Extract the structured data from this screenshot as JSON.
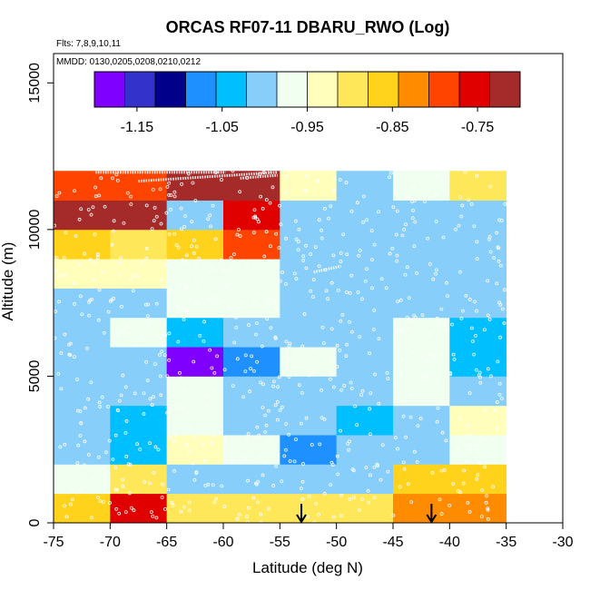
{
  "chart_data": {
    "type": "heatmap",
    "title": "ORCAS RF07-11 DBARU_RWO (Log)",
    "xlabel": "Latitude (deg N)",
    "ylabel": "Altitude (m)",
    "annotations": [
      "Flts: 7,8,9,10,11",
      "MMDD: 0130,0205,0208,0210,0212"
    ],
    "xlim": [
      -75,
      -30
    ],
    "ylim": [
      0,
      16000
    ],
    "x_ticks": [
      -75,
      -70,
      -65,
      -60,
      -55,
      -50,
      -45,
      -40,
      -35,
      -30
    ],
    "x_tick_labels": [
      "-75",
      "-70",
      "-65",
      "-60",
      "-55",
      "-50",
      "-45",
      "-40",
      "-35",
      "-30"
    ],
    "y_ticks": [
      0,
      5000,
      10000,
      15000
    ],
    "y_tick_labels": [
      "0",
      "5000",
      "10000",
      "15000"
    ],
    "colorbar": {
      "range": [
        -1.2,
        -0.7
      ],
      "tick_values": [
        -1.15,
        -1.05,
        -0.95,
        -0.85,
        -0.75
      ],
      "tick_labels": [
        "-1.15",
        "-1.05",
        "-0.95",
        "-0.85",
        "-0.75"
      ],
      "colors": [
        "#7f00ff",
        "#3333cc",
        "#00008b",
        "#1e90ff",
        "#00bfff",
        "#87cefa",
        "#f0fff0",
        "#ffffbb",
        "#ffe75a",
        "#ffd21c",
        "#ff8c00",
        "#ff4400",
        "#e00000",
        "#a52a2a"
      ]
    },
    "x_bins": [
      -75,
      -70,
      -65,
      -60,
      -55,
      -50,
      -45,
      -40,
      -35
    ],
    "y_bins": [
      0,
      1000,
      2000,
      3000,
      4000,
      5000,
      6000,
      7000,
      8000,
      9000,
      10000,
      11000,
      12000
    ],
    "cell_values": [
      [
        -0.86,
        -0.76,
        -0.9,
        -0.9,
        -0.9,
        -0.9,
        -0.84,
        -0.84
      ],
      [
        -0.97,
        -0.9,
        -0.99,
        -0.99,
        -0.99,
        -0.99,
        -0.86,
        -0.86
      ],
      [
        -1.01,
        -1.05,
        -0.93,
        -0.98,
        -1.06,
        -1.01,
        -0.99,
        -0.96
      ],
      [
        -0.99,
        -1.05,
        -0.96,
        -1.0,
        -1.02,
        -1.03,
        -1.02,
        -0.95
      ],
      [
        -1.0,
        -0.99,
        -0.96,
        -1.01,
        -1.0,
        -1.01,
        -0.97,
        -1.0
      ],
      [
        -1.0,
        -1.0,
        -1.17,
        -1.09,
        -0.98,
        -1.0,
        -0.97,
        -1.03
      ],
      [
        -0.99,
        -0.98,
        -1.03,
        -1.02,
        -1.01,
        -1.02,
        -0.98,
        -1.03
      ],
      [
        -1.0,
        -0.99,
        -0.96,
        -0.97,
        -1.0,
        -1.0,
        -1.0,
        -1.02
      ],
      [
        -0.95,
        -0.92,
        -0.98,
        -0.96,
        -1.01,
        -1.0,
        -1.01,
        -1.02
      ],
      [
        -0.87,
        -0.91,
        -0.86,
        -0.79,
        -1.0,
        -0.99,
        -1.0,
        -1.02
      ],
      [
        -0.73,
        -0.73,
        -1.0,
        -0.75,
        -1.0,
        -1.0,
        -1.0,
        -1.0
      ],
      [
        -0.8,
        -0.78,
        -0.73,
        -0.73,
        -0.94,
        -1.01,
        -0.97,
        -0.91
      ]
    ],
    "flight_tracks": [
      {
        "name": "descent-upper-left",
        "lat": [
          -71.3,
          -59.8
        ],
        "alt": [
          11950,
          11950
        ]
      },
      {
        "name": "slant-upper-left",
        "lat": [
          -67.5,
          -55.2
        ],
        "alt": [
          11650,
          11950
        ]
      },
      {
        "name": "leg-upper-mid",
        "lat": [
          -58.5,
          -55.2
        ],
        "alt": [
          11750,
          11850
        ]
      },
      {
        "name": "mid-track",
        "lat": [
          -52.0,
          -49.6
        ],
        "alt": [
          8550,
          8750
        ]
      }
    ],
    "markers": [
      {
        "name": "arrow-1",
        "lat": -53.1,
        "alt": 0
      },
      {
        "name": "arrow-2",
        "lat": -41.6,
        "alt": 0
      }
    ]
  }
}
